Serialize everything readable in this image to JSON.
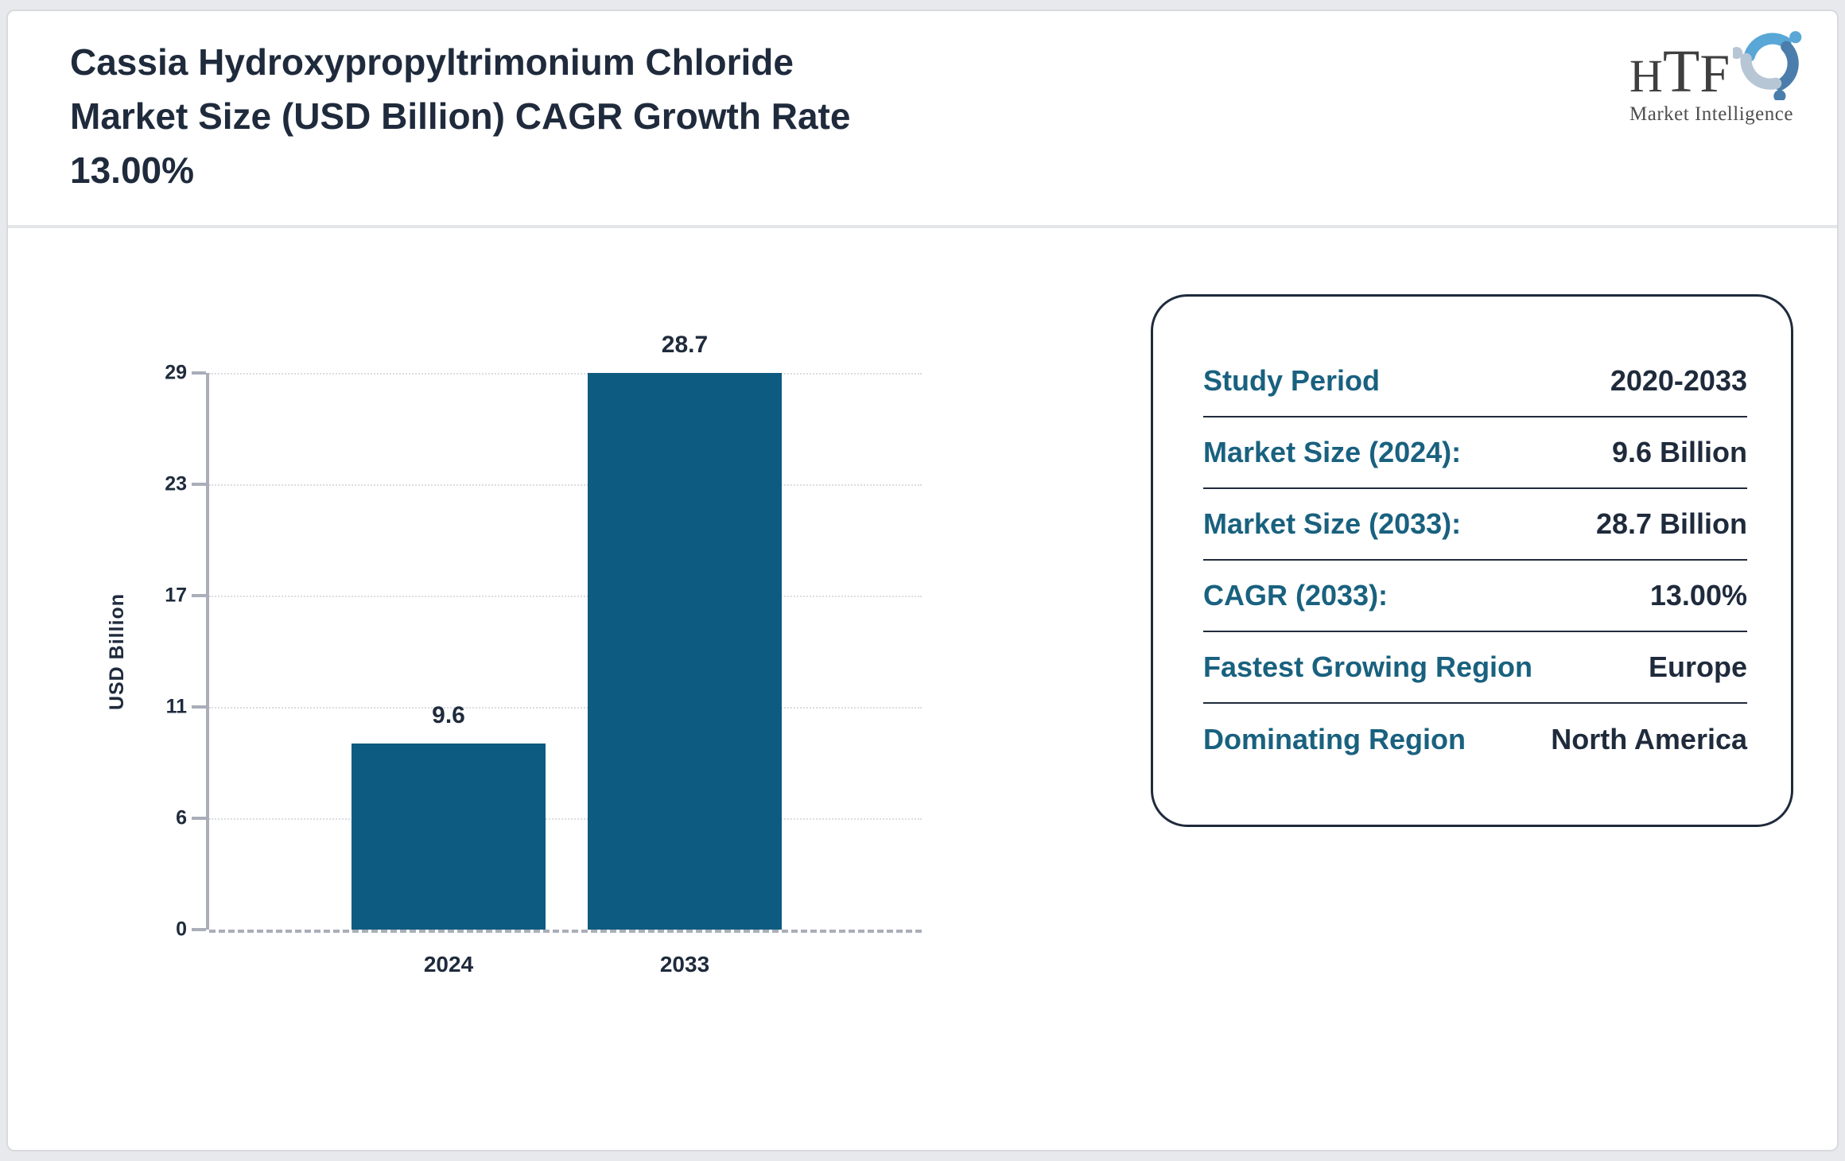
{
  "header": {
    "title_lines": [
      "Cassia Hydroxypropyltrimonium Chloride",
      "Market Size (USD Billion) CAGR Growth Rate",
      "13.00%"
    ],
    "logo": {
      "letters": [
        "H",
        "T",
        "F"
      ],
      "subtitle": "Market Intelligence",
      "icon_colors": [
        "#58a7d7",
        "#4a7dab",
        "#b7c6d4"
      ]
    }
  },
  "chart_data": {
    "type": "bar",
    "title": "Cassia Hydroxypropyltrimonium Chloride Market Size (USD Billion) CAGR Growth Rate 13.00%",
    "categories": [
      "2024",
      "2033"
    ],
    "values": [
      9.6,
      28.7
    ],
    "bar_labels": [
      "9.6",
      "28.7"
    ],
    "xlabel": "",
    "ylabel": "USD Billion",
    "yticks": [
      0,
      6,
      11,
      17,
      23,
      29
    ],
    "ylim": [
      0,
      29
    ],
    "grid": "horizontal-dotted",
    "legend": "none",
    "bar_color": "#0d5b80"
  },
  "info_panel": {
    "rows": [
      {
        "label": "Study Period",
        "value": "2020-2033"
      },
      {
        "label": "Market Size (2024):",
        "value": "9.6 Billion"
      },
      {
        "label": "Market Size (2033):",
        "value": "28.7 Billion"
      },
      {
        "label": "CAGR (2033):",
        "value": "13.00%"
      },
      {
        "label": "Fastest Growing Region",
        "value": "Europe"
      },
      {
        "label": "Dominating Region",
        "value": "North America"
      }
    ]
  }
}
